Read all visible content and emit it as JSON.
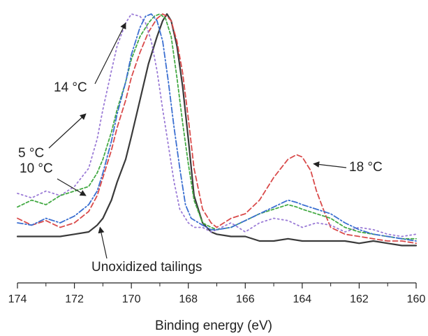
{
  "chart_data": {
    "type": "line",
    "xlabel": "Binding energy (eV)",
    "ylabel": "",
    "xlim": [
      174,
      160
    ],
    "x_reversed": true,
    "ylim": [
      0,
      1.1
    ],
    "xticks": [
      "174",
      "172",
      "170",
      "168",
      "166",
      "164",
      "162",
      "160"
    ],
    "grid": false,
    "series": [
      {
        "name": "Unoxidized tailings",
        "color": "#3a3a3a",
        "dash": "solid",
        "x": [
          174,
          173.5,
          173,
          172.5,
          172,
          171.5,
          171.2,
          171,
          170.7,
          170.5,
          170.2,
          170,
          169.7,
          169.4,
          169.1,
          168.9,
          168.75,
          168.6,
          168.4,
          168.2,
          168,
          167.8,
          167.5,
          167.2,
          167,
          166.5,
          166,
          165.5,
          165,
          164.5,
          164,
          163.5,
          163,
          162.5,
          162,
          161.5,
          161,
          160.5,
          160
        ],
        "y": [
          0.02,
          0.02,
          0.02,
          0.02,
          0.03,
          0.04,
          0.07,
          0.1,
          0.18,
          0.26,
          0.36,
          0.46,
          0.62,
          0.78,
          0.9,
          0.97,
          1.0,
          0.97,
          0.86,
          0.68,
          0.45,
          0.2,
          0.08,
          0.04,
          0.03,
          0.02,
          0.02,
          0.0,
          0.0,
          0.01,
          0.0,
          0.0,
          0.0,
          0.0,
          -0.01,
          0.0,
          -0.01,
          -0.02,
          -0.02
        ]
      },
      {
        "name": "18 °C",
        "color": "#d94a4a",
        "dash": "7,4",
        "x": [
          174,
          173.5,
          173,
          172.5,
          172,
          171.5,
          171.2,
          171,
          170.7,
          170.5,
          170.2,
          170,
          169.7,
          169.4,
          169.1,
          168.9,
          168.75,
          168.6,
          168.4,
          168.2,
          168,
          167.8,
          167.5,
          167.2,
          167,
          166.5,
          166,
          165.5,
          165,
          164.5,
          164.2,
          164,
          163.7,
          163.5,
          163.2,
          163,
          162.5,
          162,
          161.5,
          161,
          160.5,
          160
        ],
        "y": [
          0.1,
          0.07,
          0.09,
          0.06,
          0.08,
          0.13,
          0.2,
          0.28,
          0.4,
          0.5,
          0.62,
          0.72,
          0.83,
          0.92,
          0.98,
          1.0,
          0.99,
          0.97,
          0.88,
          0.74,
          0.54,
          0.32,
          0.14,
          0.08,
          0.06,
          0.1,
          0.12,
          0.18,
          0.28,
          0.36,
          0.38,
          0.37,
          0.31,
          0.22,
          0.12,
          0.06,
          0.03,
          0.02,
          0.01,
          0.0,
          0.0,
          -0.01
        ]
      },
      {
        "name": "14 °C",
        "color": "#9a7ad6",
        "dash": "2,4",
        "x": [
          174,
          173.5,
          173,
          172.5,
          172,
          171.5,
          171.2,
          171,
          170.7,
          170.5,
          170.2,
          170,
          169.7,
          169.5,
          169.3,
          169.1,
          168.9,
          168.7,
          168.5,
          168.3,
          168,
          167.8,
          167.5,
          167.2,
          167,
          166.5,
          166,
          165.5,
          165,
          164.5,
          164,
          163.5,
          163,
          162.5,
          162,
          161.5,
          161,
          160.5,
          160
        ],
        "y": [
          0.21,
          0.19,
          0.22,
          0.2,
          0.24,
          0.32,
          0.45,
          0.58,
          0.75,
          0.86,
          0.96,
          1.0,
          0.99,
          0.96,
          0.88,
          0.75,
          0.58,
          0.42,
          0.26,
          0.14,
          0.08,
          0.06,
          0.06,
          0.04,
          0.05,
          0.08,
          0.04,
          0.08,
          0.1,
          0.09,
          0.06,
          0.08,
          0.07,
          0.04,
          0.06,
          0.05,
          0.03,
          0.02,
          0.03
        ]
      },
      {
        "name": "5 °C",
        "color": "#44aa44",
        "dash": "4,3",
        "x": [
          174,
          173.5,
          173,
          172.5,
          172,
          171.5,
          171.2,
          171,
          170.7,
          170.5,
          170.2,
          170,
          169.7,
          169.4,
          169.2,
          169,
          168.8,
          168.6,
          168.4,
          168.2,
          168,
          167.8,
          167.5,
          167.2,
          167,
          166.5,
          166,
          165.5,
          165,
          164.5,
          164.2,
          164,
          163.5,
          163,
          162.5,
          162,
          161.5,
          161,
          160.5,
          160
        ],
        "y": [
          0.15,
          0.18,
          0.16,
          0.2,
          0.22,
          0.24,
          0.3,
          0.36,
          0.48,
          0.58,
          0.7,
          0.8,
          0.9,
          0.96,
          0.99,
          1.0,
          0.98,
          0.9,
          0.72,
          0.52,
          0.34,
          0.18,
          0.08,
          0.06,
          0.05,
          0.06,
          0.09,
          0.12,
          0.14,
          0.16,
          0.15,
          0.14,
          0.12,
          0.1,
          0.06,
          0.04,
          0.03,
          0.02,
          0.01,
          0.01
        ]
      },
      {
        "name": "10 °C",
        "color": "#3b6fd1",
        "dash": "8,3,2,3",
        "x": [
          174,
          173.5,
          173,
          172.5,
          172,
          171.5,
          171.2,
          171,
          170.7,
          170.5,
          170.2,
          170,
          169.7,
          169.5,
          169.3,
          169.1,
          168.9,
          168.7,
          168.5,
          168.3,
          168.1,
          167.9,
          167.5,
          167.2,
          167,
          166.5,
          166,
          165.5,
          165,
          164.5,
          164.2,
          164,
          163.5,
          163,
          162.5,
          162,
          161.5,
          161,
          160.5,
          160
        ],
        "y": [
          0.08,
          0.07,
          0.1,
          0.08,
          0.11,
          0.16,
          0.22,
          0.3,
          0.44,
          0.56,
          0.7,
          0.82,
          0.94,
          0.99,
          1.0,
          0.97,
          0.88,
          0.7,
          0.5,
          0.32,
          0.16,
          0.1,
          0.07,
          0.05,
          0.05,
          0.06,
          0.09,
          0.12,
          0.15,
          0.18,
          0.17,
          0.16,
          0.14,
          0.12,
          0.08,
          0.05,
          0.03,
          0.02,
          0.01,
          0.0
        ]
      }
    ],
    "annotations": [
      {
        "text": "14 °C",
        "series": "14 °C",
        "target": [
          170.2,
          0.96
        ]
      },
      {
        "text": "5 °C",
        "series": "5 °C",
        "target": [
          171.6,
          0.56
        ]
      },
      {
        "text": "10 °C",
        "series": "10 °C",
        "target": [
          171.6,
          0.2
        ]
      },
      {
        "text": "18 °C",
        "series": "18 °C",
        "target": [
          163.6,
          0.34
        ]
      },
      {
        "text": "Unoxidized tailings",
        "series": "Unoxidized tailings",
        "target": [
          171.1,
          0.06
        ]
      }
    ]
  }
}
